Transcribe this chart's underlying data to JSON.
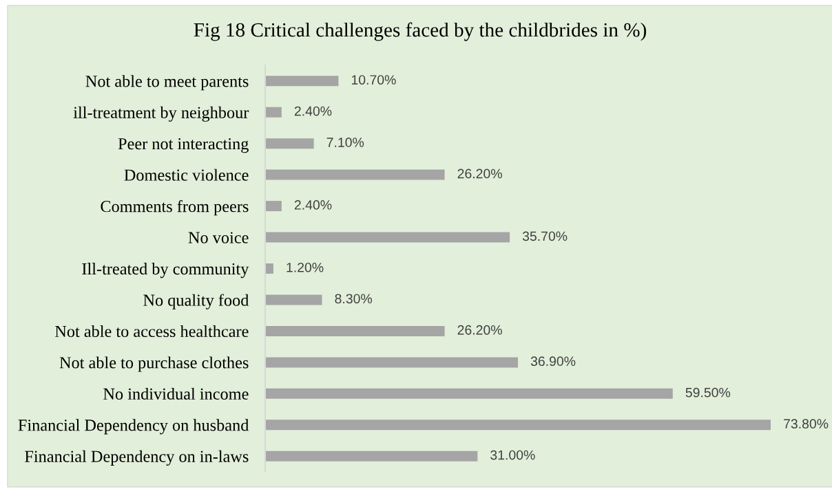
{
  "chart_data": {
    "type": "bar",
    "orientation": "horizontal",
    "title": "Fig 18 Critical challenges faced by the childbrides in %)",
    "categories": [
      "Not able to meet parents",
      "ill-treatment by neighbour",
      "Peer not interacting",
      "Domestic violence",
      "Comments from peers",
      "No voice",
      "Ill-treated by community",
      "No quality food",
      "Not able to access healthcare",
      "Not able to purchase clothes",
      "No individual income",
      "Financial Dependency on husband",
      "Financial Dependency on in-laws"
    ],
    "values": [
      10.7,
      2.4,
      7.1,
      26.2,
      2.4,
      35.7,
      1.2,
      8.3,
      26.2,
      36.9,
      59.5,
      73.8,
      31.0
    ],
    "value_labels": [
      "10.70%",
      "2.40%",
      "7.10%",
      "26.20%",
      "2.40%",
      "35.70%",
      "1.20%",
      "8.30%",
      "26.20%",
      "36.90%",
      "59.50%",
      "73.80%",
      "31.00%"
    ],
    "color": "#a5a5a5",
    "tick_labels": "y",
    "grid": false,
    "legend": false
  }
}
